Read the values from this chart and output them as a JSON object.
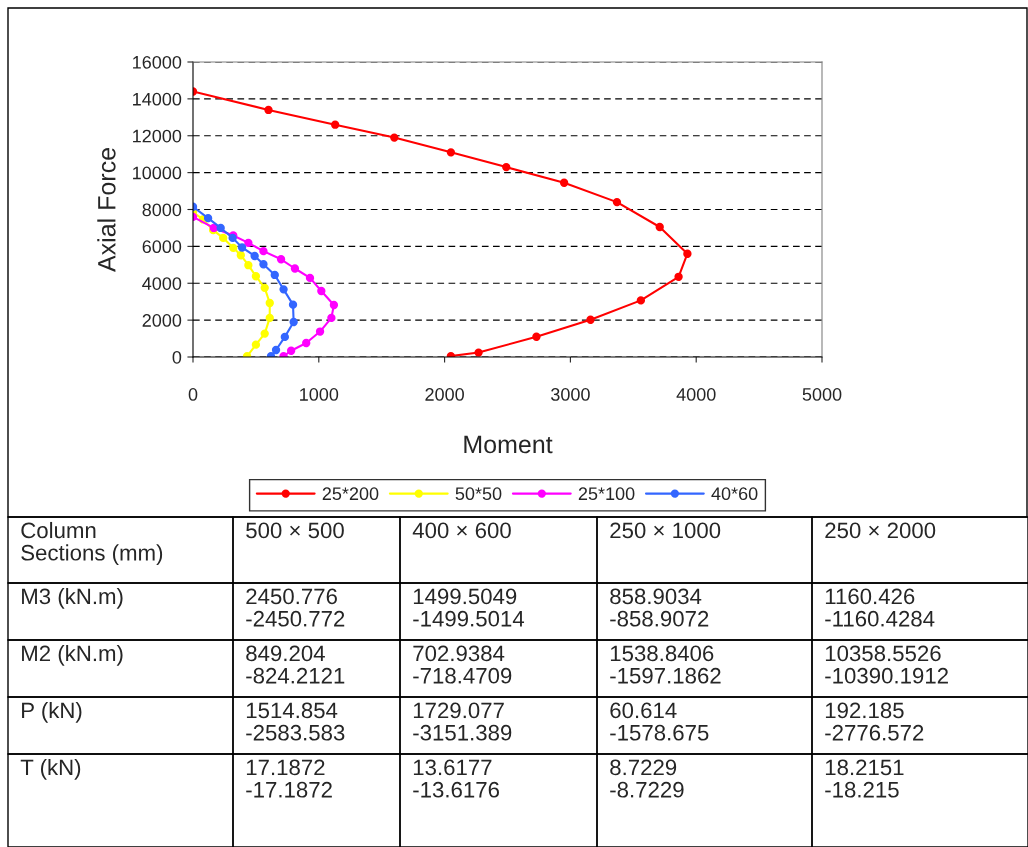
{
  "chart_data": [
    {
      "type": "line",
      "xlabel": "Moment",
      "ylabel": "Axial Force",
      "xlim": [
        0,
        5000
      ],
      "xticks": [
        0,
        1000,
        2000,
        3000,
        4000,
        5000
      ],
      "ylim": [
        0,
        16000
      ],
      "yticks": [
        0,
        2000,
        4000,
        6000,
        8000,
        10000,
        12000,
        14000,
        16000
      ],
      "grid": "y",
      "legend": "bottom",
      "marker": "circle",
      "line_style": "solid",
      "series": [
        {
          "name": "25*200",
          "color": "#ff0000",
          "x": [
            0,
            600,
            1130,
            1600,
            2050,
            2490,
            2950,
            3370,
            3710,
            3930,
            3860,
            3560,
            3160,
            2730,
            2270,
            2050
          ],
          "values": [
            14400,
            13400,
            12600,
            11900,
            11100,
            10300,
            9450,
            8400,
            7050,
            5600,
            4350,
            3070,
            2020,
            1100,
            240,
            50
          ]
        },
        {
          "name": "50*50",
          "color": "#ffff00",
          "x": [
            0,
            80,
            160,
            240,
            320,
            380,
            440,
            500,
            570,
            610,
            610,
            570,
            500,
            430
          ],
          "values": [
            7850,
            7460,
            6880,
            6460,
            5920,
            5520,
            4980,
            4380,
            3750,
            2930,
            2120,
            1270,
            670,
            40
          ]
        },
        {
          "name": "25*100",
          "color": "#ff00ff",
          "x": [
            0,
            165,
            320,
            440,
            560,
            700,
            810,
            930,
            1020,
            1120,
            1100,
            1010,
            900,
            780,
            720
          ],
          "values": [
            7600,
            7000,
            6590,
            6190,
            5740,
            5300,
            4800,
            4290,
            3580,
            2820,
            2120,
            1380,
            760,
            340,
            50
          ]
        },
        {
          "name": "40*60",
          "color": "#3366ff",
          "x": [
            0,
            120,
            220,
            315,
            390,
            490,
            560,
            650,
            720,
            795,
            800,
            730,
            660,
            620
          ],
          "values": [
            8150,
            7530,
            7000,
            6460,
            5940,
            5480,
            5030,
            4450,
            3670,
            2840,
            1900,
            1090,
            380,
            40
          ]
        }
      ]
    },
    {
      "type": "other",
      "annotations": [
        "Column\nSections (mm)",
        "500 × 500",
        "400 × 600",
        "250 × 1000",
        "250 × 2000",
        "M3 (kN.m)",
        "2450.776\n-2450.772",
        "1499.5049\n-1499.5014",
        "858.9034\n-858.9072",
        "1160.426\n-1160.4284",
        "M2 (kN.m)",
        "849.204\n-824.2121",
        "702.9384\n-718.4709",
        "1538.8406\n-1597.1862",
        "10358.5526\n-10390.1912",
        "P (kN)",
        "1514.854\n-2583.583",
        "1729.077\n-3151.389",
        "60.614\n-1578.675",
        "192.185\n-2776.572",
        "T (kN)",
        "17.1872\n-17.1872",
        "13.6177\n-13.6176",
        "8.7229\n-8.7229",
        "18.2151\n-18.215"
      ]
    }
  ]
}
